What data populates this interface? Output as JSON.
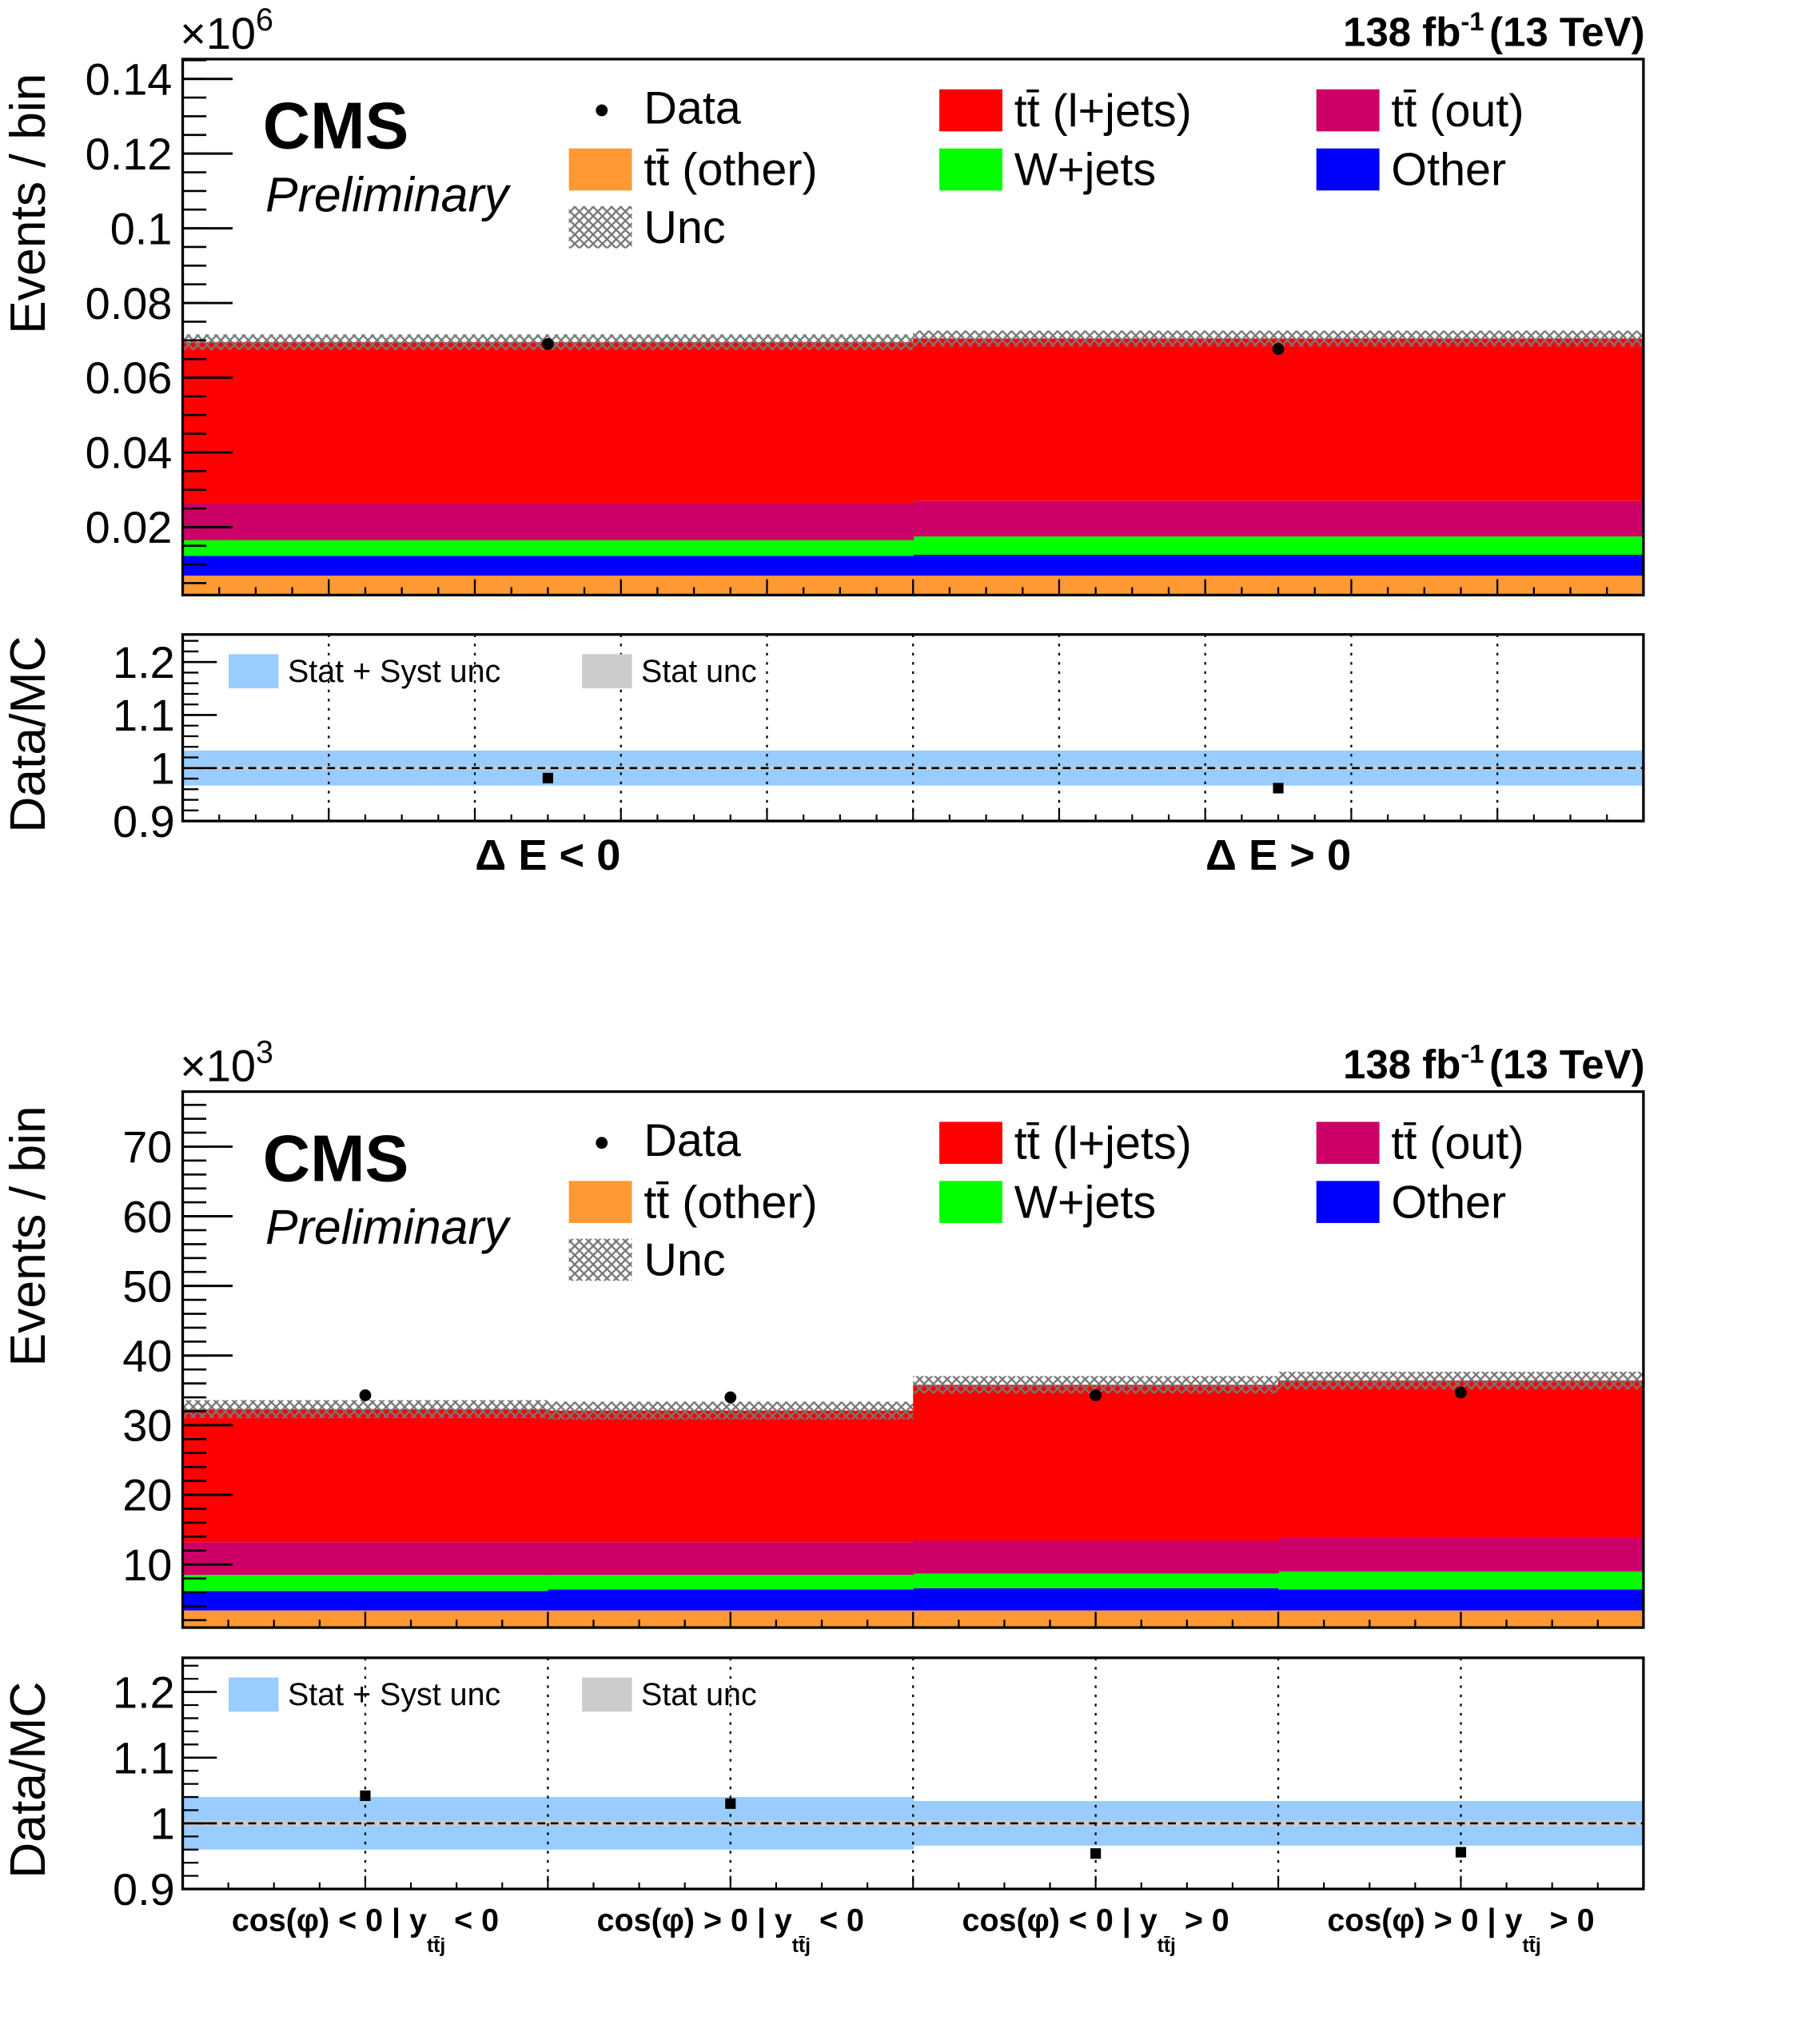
{
  "figure": {
    "cms": "CMS",
    "preliminary": "Preliminary",
    "lumi": "138 fb",
    "lumi_exp": "-1",
    "energy": "(13 TeV)"
  },
  "legend": {
    "data": "Data",
    "ttljets": "tt̄ (l+jets)",
    "ttout": "tt̄ (out)",
    "ttother": "tt̄ (other)",
    "wjets": "W+jets",
    "other": "Other",
    "unc": "Unc",
    "ratio_syst": "Stat + Syst unc",
    "ratio_stat": "Stat unc"
  },
  "colors": {
    "ttljets": "#ff0000",
    "ttout": "#cc0066",
    "ttother": "#ff9933",
    "wjets": "#00ff00",
    "other": "#0000ff",
    "syst_band": "#99ccff",
    "stat_band": "#cccccc"
  },
  "chart_data": [
    {
      "type": "bar",
      "stacked": true,
      "ylabel": "Events / bin",
      "multiplier": "×10",
      "multiplier_exp": "6",
      "ylim": [
        0.0018,
        0.1453
      ],
      "yticks": [
        0.02,
        0.04,
        0.06,
        0.08,
        0.1,
        0.12,
        0.14
      ],
      "ytick_labels": [
        "0.02",
        "0.04",
        "0.06",
        "0.08",
        "0.1",
        "0.12",
        "0.14"
      ],
      "categories": [
        {
          "pre": "Δ E < 0",
          "sub": "",
          "post": ""
        },
        {
          "pre": "Δ E > 0",
          "sub": "",
          "post": ""
        }
      ],
      "series": [
        {
          "name": "tt̄ (other)",
          "key": "ttother",
          "values": [
            0.007,
            0.007
          ]
        },
        {
          "name": "Other",
          "key": "other",
          "values": [
            0.0053,
            0.0056
          ]
        },
        {
          "name": "W+jets",
          "key": "wjets",
          "values": [
            0.0042,
            0.0049
          ]
        },
        {
          "name": "tt̄ (out)",
          "key": "ttout",
          "values": [
            0.0098,
            0.0095
          ]
        },
        {
          "name": "tt̄ (l+jets)",
          "key": "ttljets",
          "values": [
            0.0432,
            0.0435
          ]
        }
      ],
      "data": [
        0.069,
        0.0677
      ],
      "unc_rel": [
        0.03,
        0.03
      ],
      "ratio": {
        "ylabel": "Data/MC",
        "ylim": [
          0.9,
          1.252
        ],
        "yticks": [
          0.9,
          1.0,
          1.1,
          1.2
        ],
        "ytick_labels": [
          "0.9",
          "1",
          "1.1",
          "1.2"
        ],
        "values": [
          0.981,
          0.962
        ],
        "syst_band": [
          [
            0.967,
            1.033
          ],
          [
            0.967,
            1.033
          ]
        ],
        "stat_band": [
          [
            0.997,
            1.003
          ],
          [
            0.997,
            1.003
          ]
        ]
      }
    },
    {
      "type": "bar",
      "stacked": true,
      "ylabel": "Events / bin",
      "multiplier": "×10",
      "multiplier_exp": "3",
      "ylim": [
        0.94,
        77.9
      ],
      "yticks": [
        10,
        20,
        30,
        40,
        50,
        60,
        70
      ],
      "ytick_labels": [
        "10",
        "20",
        "30",
        "40",
        "50",
        "60",
        "70"
      ],
      "categories": [
        {
          "pre": "cos(φ) < 0 | y",
          "sub": "tt̄j",
          "post": " < 0"
        },
        {
          "pre": "cos(φ) > 0 | y",
          "sub": "tt̄j",
          "post": " < 0"
        },
        {
          "pre": "cos(φ) < 0 | y",
          "sub": "tt̄j",
          "post": " > 0"
        },
        {
          "pre": "cos(φ) > 0 | y",
          "sub": "tt̄j",
          "post": " > 0"
        }
      ],
      "series": [
        {
          "name": "tt̄ (other)",
          "key": "ttother",
          "values": [
            3.4,
            3.4,
            3.4,
            3.4
          ]
        },
        {
          "name": "Other",
          "key": "other",
          "values": [
            2.8,
            3.0,
            3.2,
            3.0
          ]
        },
        {
          "name": "W+jets",
          "key": "wjets",
          "values": [
            2.3,
            2.1,
            2.1,
            2.6
          ]
        },
        {
          "name": "tt̄ (out)",
          "key": "ttout",
          "values": [
            4.7,
            4.7,
            4.7,
            4.8
          ]
        },
        {
          "name": "tt̄ (l+jets)",
          "key": "ttljets",
          "values": [
            19.1,
            18.9,
            22.4,
            22.6
          ]
        }
      ],
      "data": [
        34.3,
        34.0,
        34.3,
        34.7
      ],
      "unc_rel": [
        0.04,
        0.04,
        0.035,
        0.035
      ],
      "ratio": {
        "ylabel": "Data/MC",
        "ylim": [
          0.9,
          1.252
        ],
        "yticks": [
          0.9,
          1.0,
          1.1,
          1.2
        ],
        "ytick_labels": [
          "0.9",
          "1",
          "1.1",
          "1.2"
        ],
        "values": [
          1.042,
          1.03,
          0.954,
          0.956
        ],
        "syst_band": [
          [
            0.96,
            1.04
          ],
          [
            0.96,
            1.04
          ],
          [
            0.966,
            1.034
          ],
          [
            0.966,
            1.034
          ]
        ],
        "stat_band": [
          [
            0.996,
            1.004
          ],
          [
            0.996,
            1.004
          ],
          [
            0.996,
            1.004
          ],
          [
            0.996,
            1.004
          ]
        ]
      }
    }
  ]
}
